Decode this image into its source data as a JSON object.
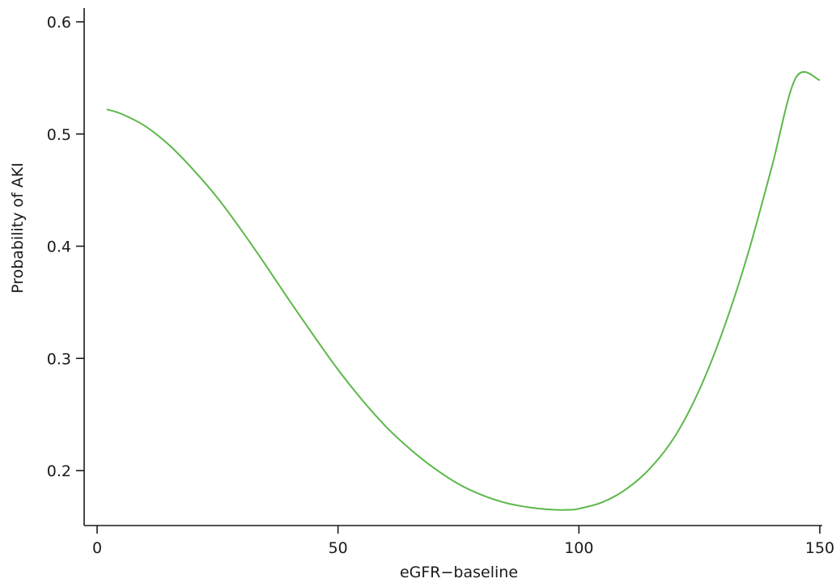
{
  "chart_data": {
    "type": "line",
    "title": "",
    "xlabel": "eGFR−baseline",
    "ylabel": "Probability of AKI",
    "xlim": [
      -3,
      151
    ],
    "ylim": [
      0.15,
      0.612
    ],
    "x_ticks": [
      0,
      50,
      100,
      150
    ],
    "y_ticks": [
      0.2,
      0.3,
      0.4,
      0.5,
      0.6
    ],
    "x_tick_labels": [
      "0",
      "50",
      "100",
      "150"
    ],
    "y_tick_labels": [
      "0.2",
      "0.3",
      "0.4",
      "0.5",
      "0.6"
    ],
    "grid": false,
    "legend": "none",
    "line_color": "#5cb84a",
    "series": [
      {
        "x": [
          2,
          5,
          10,
          15,
          20,
          25,
          30,
          35,
          40,
          45,
          50,
          55,
          60,
          65,
          70,
          75,
          80,
          85,
          90,
          95,
          98,
          100,
          105,
          110,
          115,
          120,
          125,
          130,
          135,
          140,
          145,
          150
        ],
        "values": [
          0.522,
          0.518,
          0.507,
          0.49,
          0.468,
          0.443,
          0.414,
          0.383,
          0.351,
          0.32,
          0.29,
          0.263,
          0.239,
          0.219,
          0.202,
          0.188,
          0.178,
          0.171,
          0.167,
          0.165,
          0.165,
          0.166,
          0.172,
          0.184,
          0.203,
          0.231,
          0.272,
          0.326,
          0.392,
          0.47,
          0.55,
          0.548
        ]
      }
    ]
  }
}
